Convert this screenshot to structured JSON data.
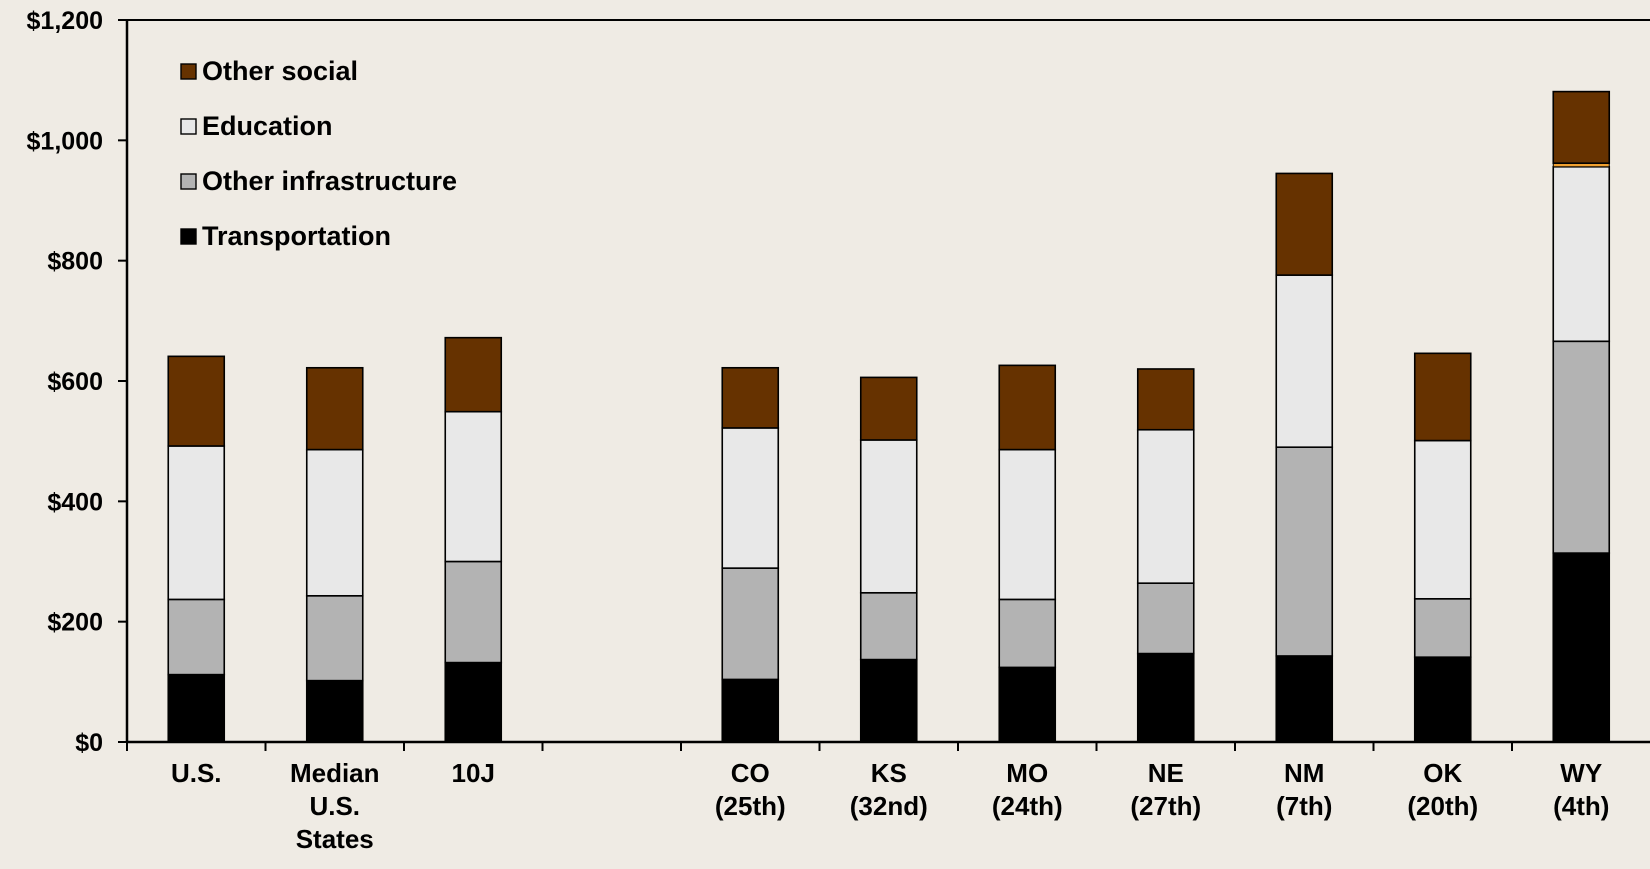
{
  "chart_data": {
    "type": "bar",
    "stacked": true,
    "title": "",
    "xlabel": "",
    "ylabel": "",
    "ylim": [
      0,
      1200
    ],
    "yticks": [
      "$0",
      "$200",
      "$400",
      "$600",
      "$800",
      "$1,000",
      "$1,200"
    ],
    "ytick_values": [
      0,
      200,
      400,
      600,
      800,
      1000,
      1200
    ],
    "grid": false,
    "legend_position": "top-left",
    "categories": [
      [
        "U.S."
      ],
      [
        "Median",
        "U.S.",
        "States"
      ],
      [
        "10J"
      ],
      [
        ""
      ],
      [
        "CO",
        "(25th)"
      ],
      [
        "KS",
        "(32nd)"
      ],
      [
        "MO",
        "(24th)"
      ],
      [
        "NE",
        "(27th)"
      ],
      [
        "NM",
        "(7th)"
      ],
      [
        "OK",
        "(20th)"
      ],
      [
        "WY",
        "(4th)"
      ]
    ],
    "series": [
      {
        "name": "Transportation",
        "color": "#000000",
        "values": [
          112,
          102,
          132,
          null,
          104,
          137,
          124,
          147,
          143,
          141,
          314
        ]
      },
      {
        "name": "Other infrastructure",
        "color": "#b3b3b3",
        "values": [
          125,
          141,
          168,
          null,
          185,
          111,
          113,
          117,
          347,
          97,
          352
        ]
      },
      {
        "name": "Education",
        "color": "#e8e8e8",
        "values": [
          255,
          243,
          249,
          null,
          233,
          254,
          249,
          255,
          286,
          263,
          290
        ]
      },
      {
        "name": "Other social",
        "color": "#663200",
        "values": [
          149,
          136,
          123,
          null,
          100,
          104,
          140,
          101,
          169,
          145,
          119
        ]
      }
    ],
    "extra_segment": {
      "category_index": 10,
      "value": 6,
      "color": "#f0a030"
    }
  }
}
